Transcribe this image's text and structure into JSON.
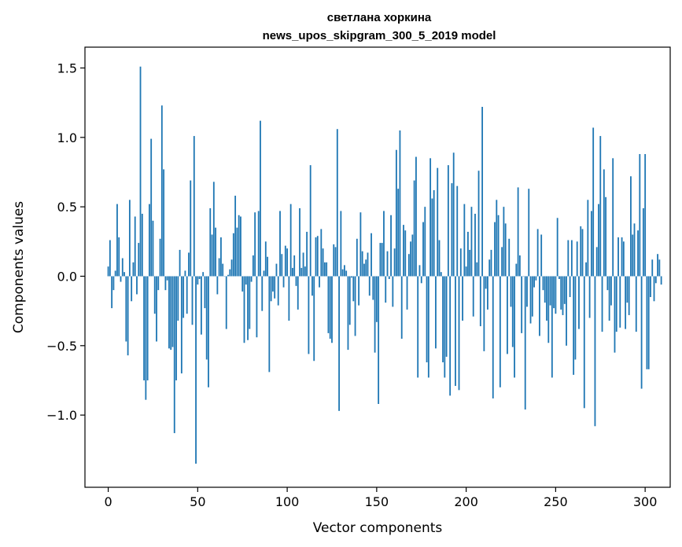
{
  "chart_data": {
    "type": "bar",
    "title": "светлана хоркина",
    "subtitle": "news_upos_skipgram_300_5_2019 model",
    "xlabel": "Vector components",
    "ylabel": "Components values",
    "xlim": [
      -13,
      314
    ],
    "ylim": [
      -1.52,
      1.65
    ],
    "xticks": [
      0,
      50,
      100,
      150,
      200,
      250,
      300
    ],
    "yticks": [
      -1.0,
      -0.5,
      0.0,
      0.5,
      1.0,
      1.5
    ],
    "ytick_labels": [
      "−1.0",
      "−0.5",
      "0.0",
      "0.5",
      "1.0",
      "1.5"
    ],
    "bar_color": "#1f77b4",
    "grid": false,
    "legend": "none",
    "values": [
      0.07,
      0.26,
      -0.23,
      -0.1,
      0.04,
      0.52,
      0.28,
      -0.04,
      0.13,
      0.03,
      -0.47,
      -0.57,
      0.55,
      -0.18,
      0.1,
      0.43,
      -0.13,
      0.24,
      1.51,
      0.45,
      -0.75,
      -0.89,
      -0.75,
      0.52,
      0.99,
      0.4,
      -0.27,
      -0.47,
      -0.1,
      0.27,
      1.23,
      0.77,
      -0.1,
      -0.03,
      -0.52,
      -0.53,
      -0.51,
      -1.13,
      -0.75,
      -0.32,
      0.19,
      -0.7,
      -0.3,
      0.04,
      -0.27,
      0.17,
      0.69,
      -0.35,
      1.01,
      -1.35,
      -0.06,
      -0.02,
      -0.42,
      0.03,
      -0.23,
      -0.6,
      -0.8,
      0.49,
      0.3,
      0.68,
      0.35,
      -0.13,
      0.13,
      0.28,
      0.09,
      0.0,
      -0.38,
      0.01,
      0.05,
      0.12,
      0.31,
      0.58,
      0.35,
      0.44,
      0.43,
      -0.11,
      -0.48,
      -0.06,
      -0.46,
      -0.38,
      -0.04,
      0.15,
      0.46,
      -0.44,
      0.47,
      1.12,
      -0.25,
      0.04,
      0.25,
      0.14,
      -0.69,
      -0.18,
      -0.11,
      -0.16,
      0.09,
      -0.21,
      0.47,
      0.16,
      -0.08,
      0.22,
      0.2,
      -0.32,
      0.52,
      0.06,
      0.15,
      -0.07,
      -0.24,
      0.49,
      0.06,
      0.17,
      0.07,
      0.32,
      -0.56,
      0.8,
      -0.14,
      -0.61,
      0.28,
      0.29,
      -0.08,
      0.34,
      0.2,
      0.1,
      0.1,
      -0.41,
      -0.45,
      -0.48,
      0.23,
      0.21,
      1.06,
      -0.97,
      0.47,
      0.05,
      0.08,
      0.04,
      -0.53,
      -0.35,
      -0.01,
      -0.18,
      -0.43,
      0.27,
      -0.21,
      0.46,
      0.18,
      0.09,
      0.12,
      0.17,
      -0.14,
      0.31,
      -0.17,
      -0.55,
      -0.33,
      -0.92,
      0.24,
      0.24,
      0.47,
      -0.19,
      0.18,
      -0.02,
      0.44,
      -0.22,
      0.2,
      0.91,
      0.63,
      1.05,
      -0.45,
      0.37,
      0.33,
      -0.24,
      0.16,
      0.25,
      0.3,
      0.69,
      0.86,
      -0.73,
      0.08,
      -0.05,
      0.39,
      0.5,
      -0.62,
      -0.73,
      0.85,
      0.56,
      0.62,
      -0.52,
      0.78,
      0.26,
      0.03,
      -0.62,
      -0.73,
      -0.58,
      0.8,
      -0.86,
      0.67,
      0.89,
      -0.79,
      0.65,
      -0.82,
      0.2,
      -0.32,
      0.52,
      0.07,
      0.32,
      0.19,
      0.5,
      -0.29,
      0.45,
      0.1,
      0.76,
      -0.36,
      1.22,
      -0.54,
      -0.09,
      -0.24,
      0.12,
      0.19,
      -0.88,
      0.39,
      0.55,
      0.44,
      -0.8,
      0.21,
      0.5,
      0.38,
      -0.56,
      0.27,
      -0.22,
      -0.51,
      -0.73,
      0.09,
      0.64,
      0.15,
      -0.41,
      0.0,
      -0.96,
      -0.22,
      0.63,
      -0.34,
      -0.29,
      -0.08,
      -0.03,
      0.34,
      -0.43,
      0.3,
      -0.1,
      -0.19,
      -0.32,
      -0.48,
      -0.21,
      -0.73,
      -0.23,
      -0.27,
      0.42,
      -0.02,
      -0.24,
      -0.28,
      -0.2,
      -0.5,
      0.26,
      -0.15,
      0.26,
      -0.71,
      -0.6,
      0.25,
      -0.38,
      0.36,
      0.34,
      -0.95,
      0.1,
      0.55,
      -0.3,
      0.47,
      1.07,
      -1.08,
      0.21,
      0.52,
      1.01,
      -0.4,
      0.77,
      0.57,
      -0.1,
      -0.32,
      -0.21,
      0.85,
      -0.55,
      -0.4,
      0.28,
      -0.37,
      0.28,
      0.25,
      -0.38,
      -0.19,
      -0.28,
      0.72,
      0.3,
      0.38,
      -0.4,
      0.33,
      0.88,
      -0.81,
      0.49,
      0.88,
      -0.67,
      -0.67,
      -0.15,
      0.12,
      -0.18,
      -0.05,
      0.16,
      0.12,
      -0.06
    ]
  }
}
